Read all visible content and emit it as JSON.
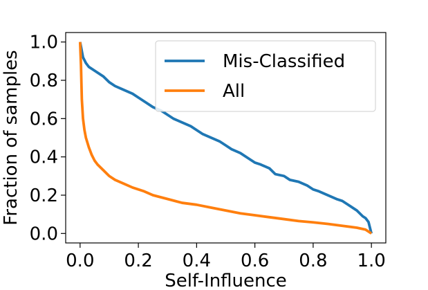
{
  "chart_data": {
    "type": "line",
    "title": "",
    "xlabel": "Self-Influence",
    "ylabel": "Fraction of samples",
    "xlim": [
      0.0,
      1.0
    ],
    "ylim": [
      0.0,
      1.0
    ],
    "xticks": [
      "0.0",
      "0.2",
      "0.4",
      "0.6",
      "0.8",
      "1.0"
    ],
    "yticks": [
      "0.0",
      "0.2",
      "0.4",
      "0.6",
      "0.8",
      "1.0"
    ],
    "grid": false,
    "legend_position": "top-right",
    "series": [
      {
        "name": "Mis-Classified",
        "color": "#1f77b4",
        "x": [
          0.0,
          0.005,
          0.01,
          0.02,
          0.03,
          0.05,
          0.08,
          0.1,
          0.12,
          0.15,
          0.18,
          0.2,
          0.22,
          0.25,
          0.28,
          0.3,
          0.32,
          0.35,
          0.38,
          0.4,
          0.42,
          0.45,
          0.48,
          0.5,
          0.52,
          0.55,
          0.58,
          0.6,
          0.62,
          0.65,
          0.67,
          0.7,
          0.72,
          0.75,
          0.78,
          0.8,
          0.82,
          0.85,
          0.88,
          0.9,
          0.92,
          0.95,
          0.97,
          0.98,
          0.99,
          1.0
        ],
        "y": [
          1.0,
          0.96,
          0.92,
          0.89,
          0.87,
          0.85,
          0.82,
          0.79,
          0.77,
          0.75,
          0.73,
          0.71,
          0.69,
          0.66,
          0.64,
          0.62,
          0.6,
          0.58,
          0.56,
          0.54,
          0.52,
          0.5,
          0.48,
          0.46,
          0.44,
          0.42,
          0.39,
          0.37,
          0.36,
          0.34,
          0.31,
          0.3,
          0.28,
          0.27,
          0.25,
          0.23,
          0.22,
          0.2,
          0.18,
          0.17,
          0.15,
          0.12,
          0.09,
          0.08,
          0.06,
          0.0
        ]
      },
      {
        "name": "All",
        "color": "#ff7f0e",
        "x": [
          0.0,
          0.003,
          0.006,
          0.01,
          0.015,
          0.02,
          0.03,
          0.04,
          0.05,
          0.06,
          0.08,
          0.1,
          0.12,
          0.15,
          0.18,
          0.2,
          0.22,
          0.25,
          0.3,
          0.35,
          0.4,
          0.45,
          0.5,
          0.55,
          0.6,
          0.65,
          0.7,
          0.75,
          0.8,
          0.85,
          0.9,
          0.95,
          0.98,
          1.0
        ],
        "y": [
          1.0,
          0.88,
          0.7,
          0.6,
          0.54,
          0.5,
          0.45,
          0.41,
          0.38,
          0.36,
          0.33,
          0.3,
          0.28,
          0.26,
          0.24,
          0.23,
          0.22,
          0.2,
          0.18,
          0.16,
          0.15,
          0.135,
          0.12,
          0.105,
          0.095,
          0.085,
          0.075,
          0.065,
          0.058,
          0.05,
          0.04,
          0.03,
          0.02,
          0.0
        ]
      }
    ]
  }
}
